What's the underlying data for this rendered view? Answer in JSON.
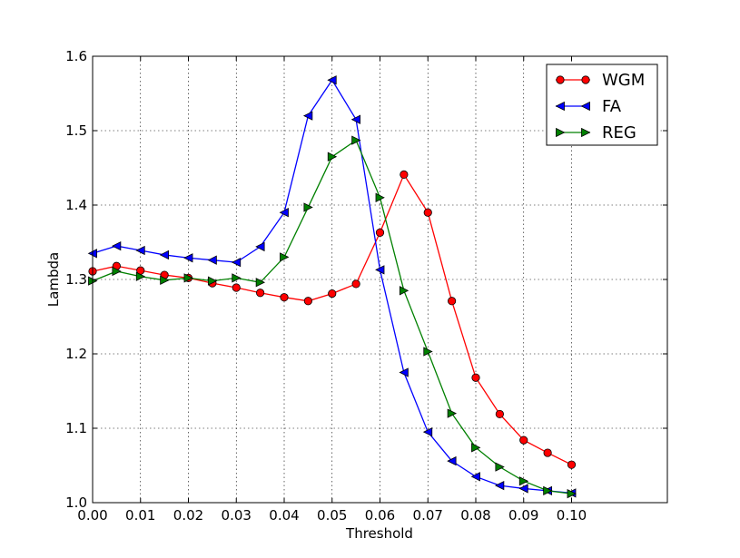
{
  "chart_data": {
    "type": "line",
    "title": "",
    "xlabel": "Threshold",
    "ylabel": "Lambda",
    "xlim": [
      0.0,
      0.12
    ],
    "ylim": [
      1.0,
      1.6
    ],
    "grid": true,
    "legend_position": "top-right",
    "x_ticks": [
      "0.00",
      "0.01",
      "0.02",
      "0.03",
      "0.04",
      "0.05",
      "0.06",
      "0.07",
      "0.08",
      "0.09",
      "0.10"
    ],
    "x_tick_values": [
      0.0,
      0.01,
      0.02,
      0.03,
      0.04,
      0.05,
      0.06,
      0.07,
      0.08,
      0.09,
      0.1
    ],
    "y_ticks": [
      "1.0",
      "1.1",
      "1.2",
      "1.3",
      "1.4",
      "1.5",
      "1.6"
    ],
    "y_tick_values": [
      1.0,
      1.1,
      1.2,
      1.3,
      1.4,
      1.5,
      1.6
    ],
    "x": [
      0.0,
      0.005,
      0.01,
      0.015,
      0.02,
      0.025,
      0.03,
      0.035,
      0.04,
      0.045,
      0.05,
      0.055,
      0.06,
      0.065,
      0.07,
      0.075,
      0.08,
      0.085,
      0.09,
      0.095,
      0.1
    ],
    "series": [
      {
        "name": "WGM",
        "color": "#ff0000",
        "marker": "circle",
        "values": [
          1.311,
          1.318,
          1.312,
          1.306,
          1.302,
          1.295,
          1.289,
          1.282,
          1.276,
          1.271,
          1.281,
          1.294,
          1.363,
          1.441,
          1.39,
          1.271,
          1.168,
          1.119,
          1.084,
          1.067,
          1.051
        ]
      },
      {
        "name": "FA",
        "color": "#0000ff",
        "marker": "triangle-left",
        "values": [
          1.335,
          1.345,
          1.339,
          1.333,
          1.329,
          1.326,
          1.323,
          1.344,
          1.39,
          1.52,
          1.568,
          1.515,
          1.313,
          1.175,
          1.095,
          1.056,
          1.035,
          1.023,
          1.019,
          1.016,
          1.013
        ]
      },
      {
        "name": "REG",
        "color": "#008000",
        "marker": "triangle-right",
        "values": [
          1.298,
          1.311,
          1.304,
          1.299,
          1.302,
          1.298,
          1.302,
          1.296,
          1.33,
          1.397,
          1.465,
          1.487,
          1.41,
          1.285,
          1.203,
          1.12,
          1.074,
          1.048,
          1.029,
          1.016,
          1.012
        ]
      }
    ]
  }
}
